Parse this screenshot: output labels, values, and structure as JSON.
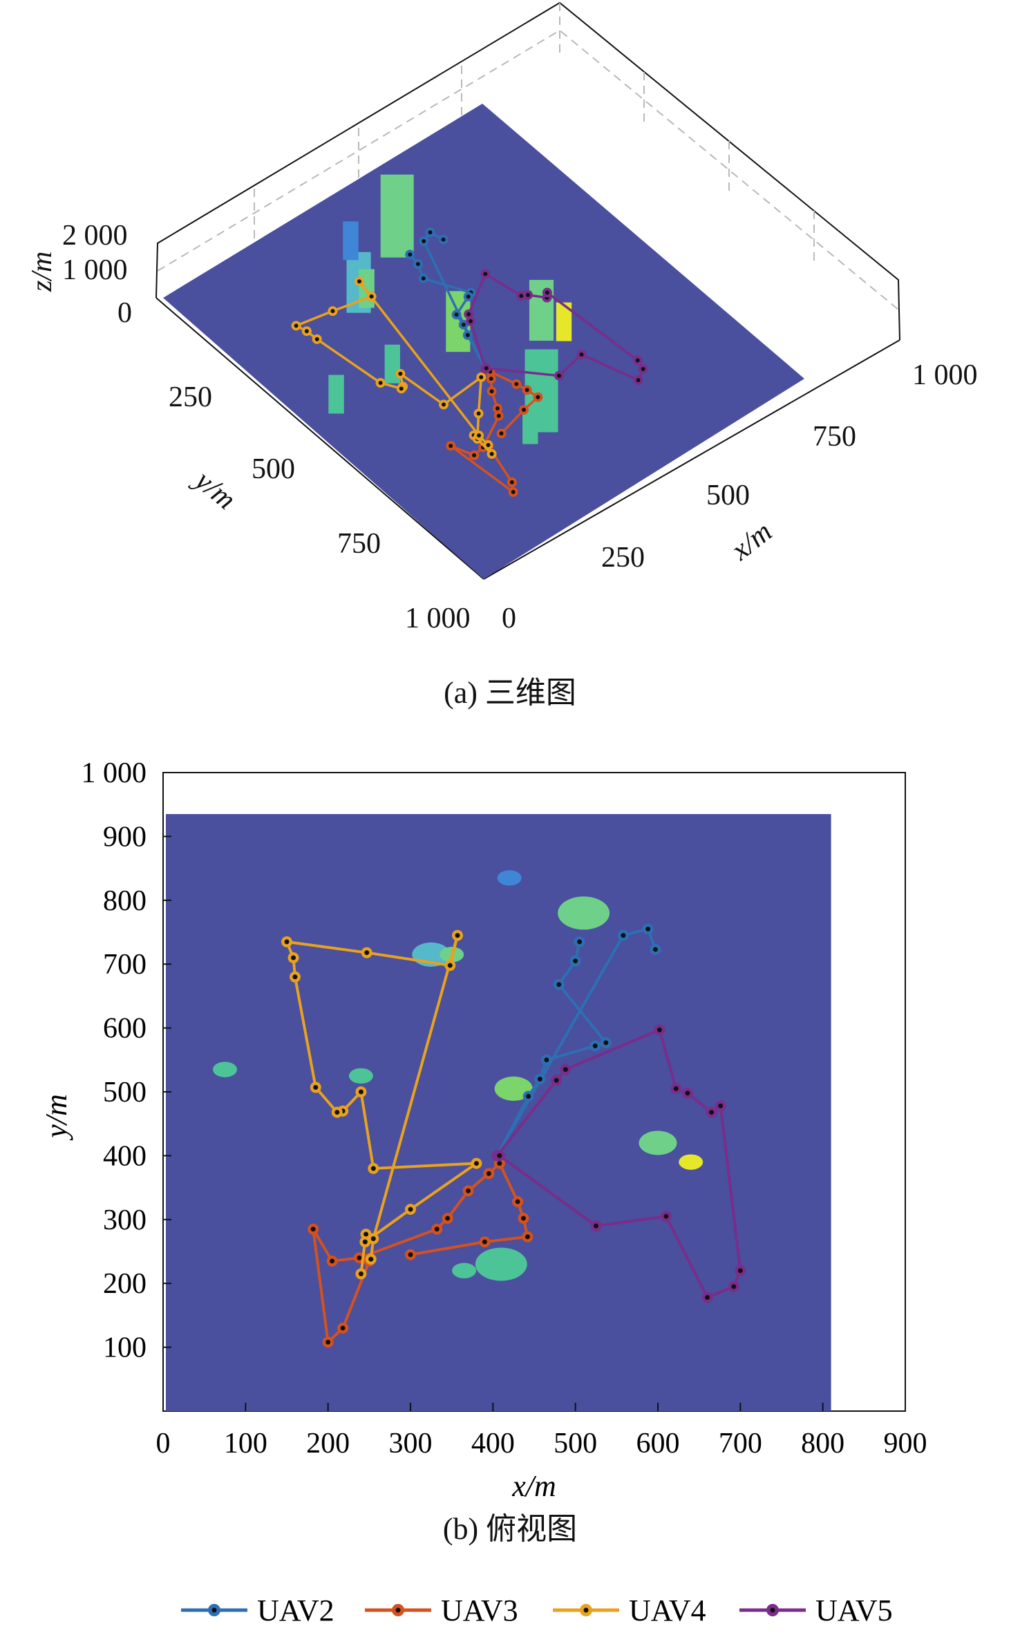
{
  "chart_data": [
    {
      "type": "scatter",
      "title": "",
      "caption": "(a) 三维图",
      "xlabel": "x/m",
      "ylabel": "y/m",
      "zlabel": "z/m",
      "x_ticks": [
        "0",
        "250",
        "500",
        "750",
        "1 000"
      ],
      "y_ticks": [
        "250",
        "500",
        "750",
        "1 000"
      ],
      "z_ticks": [
        "0",
        "1 000",
        "2 000"
      ],
      "xlim": [
        0,
        1000
      ],
      "ylim": [
        0,
        1000
      ],
      "zlim": [
        0,
        2000
      ],
      "grid": true
    },
    {
      "type": "line",
      "title": "",
      "caption": "(b) 俯视图",
      "xlabel": "x/m",
      "ylabel": "y/m",
      "xlim": [
        0,
        900
      ],
      "ylim": [
        0,
        1000
      ],
      "x_ticks": [
        "0",
        "100",
        "200",
        "300",
        "400",
        "500",
        "600",
        "700",
        "800",
        "900"
      ],
      "y_ticks": [
        "100",
        "200",
        "300",
        "400",
        "500",
        "600",
        "700",
        "800",
        "900",
        "1 000"
      ],
      "terrain_extent": {
        "x": [
          0,
          810
        ],
        "y": [
          0,
          935
        ]
      },
      "background_color": "#4a4f9e",
      "buildings": [
        {
          "x": 510,
          "y": 780,
          "color": "#6fd08a",
          "size": "large"
        },
        {
          "x": 425,
          "y": 505,
          "color": "#7bd56a",
          "size": "medium"
        },
        {
          "x": 600,
          "y": 420,
          "color": "#6fd08a",
          "size": "medium"
        },
        {
          "x": 640,
          "y": 390,
          "color": "#e6e62a",
          "size": "small"
        },
        {
          "x": 410,
          "y": 230,
          "color": "#4dc497",
          "size": "large"
        },
        {
          "x": 365,
          "y": 220,
          "color": "#4dc497",
          "size": "small"
        },
        {
          "x": 325,
          "y": 715,
          "color": "#55b9c9",
          "size": "medium"
        },
        {
          "x": 350,
          "y": 715,
          "color": "#6fd08a",
          "size": "small"
        },
        {
          "x": 75,
          "y": 535,
          "color": "#4dc497",
          "size": "small"
        },
        {
          "x": 240,
          "y": 525,
          "color": "#4dc497",
          "size": "small"
        },
        {
          "x": 420,
          "y": 835,
          "color": "#3f86d6",
          "size": "small"
        }
      ],
      "series": [
        {
          "name": "UAV2",
          "color": "#2e6fb4",
          "points": [
            [
              505,
              735
            ],
            [
              500,
              705
            ],
            [
              480,
              668
            ],
            [
              537,
              577
            ],
            [
              524,
              572
            ],
            [
              465,
              550
            ],
            [
              457,
              520
            ],
            [
              443,
              493
            ],
            [
              405,
              400
            ],
            [
              558,
              745
            ],
            [
              588,
              755
            ],
            [
              597,
              723
            ]
          ]
        },
        {
          "name": "UAV3",
          "color": "#d4521e",
          "points": [
            [
              250,
              235
            ],
            [
              218,
              130
            ],
            [
              200,
              108
            ],
            [
              182,
              285
            ],
            [
              205,
              235
            ],
            [
              238,
              240
            ],
            [
              332,
              285
            ],
            [
              345,
              302
            ],
            [
              370,
              345
            ],
            [
              395,
              372
            ],
            [
              408,
              388
            ],
            [
              430,
              328
            ],
            [
              437,
              302
            ],
            [
              442,
              273
            ],
            [
              390,
              265
            ],
            [
              300,
              245
            ]
          ]
        },
        {
          "name": "UAV4",
          "color": "#e8a21d",
          "points": [
            [
              240,
              215
            ],
            [
              246,
              277
            ],
            [
              245,
              265
            ],
            [
              300,
              316
            ],
            [
              380,
              388
            ],
            [
              255,
              380
            ],
            [
              240,
              500
            ],
            [
              218,
              470
            ],
            [
              211,
              468
            ],
            [
              185,
              507
            ],
            [
              160,
              680
            ],
            [
              158,
              710
            ],
            [
              150,
              735
            ],
            [
              247,
              718
            ],
            [
              348,
              698
            ],
            [
              357,
              745
            ],
            [
              255,
              270
            ],
            [
              252,
              238
            ]
          ]
        },
        {
          "name": "UAV5",
          "color": "#7a2d8a",
          "points": [
            [
              405,
              400
            ],
            [
              477,
              518
            ],
            [
              488,
              535
            ],
            [
              602,
              597
            ],
            [
              622,
              505
            ],
            [
              636,
              498
            ],
            [
              665,
              468
            ],
            [
              676,
              478
            ],
            [
              700,
              220
            ],
            [
              692,
              195
            ],
            [
              660,
              178
            ],
            [
              610,
              305
            ],
            [
              525,
              290
            ],
            [
              408,
              400
            ]
          ]
        }
      ],
      "legend": [
        "UAV2",
        "UAV3",
        "UAV4",
        "UAV5"
      ],
      "legend_position": "bottom"
    }
  ]
}
